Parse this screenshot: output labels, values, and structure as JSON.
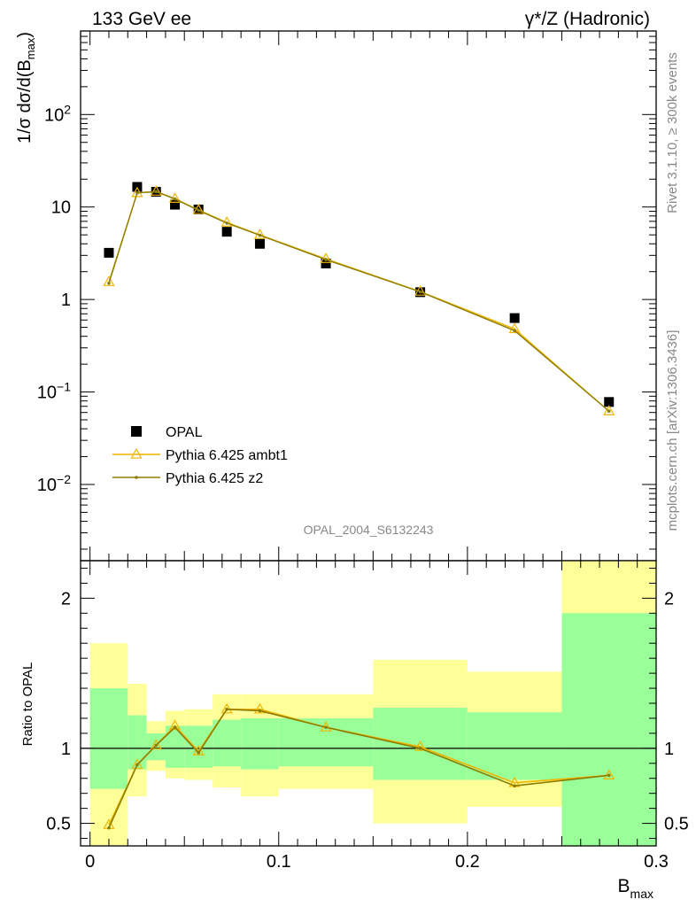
{
  "header": {
    "left_title": "133 GeV ee",
    "right_title": "γ*/Z (Hadronic)"
  },
  "side_labels": {
    "rivet": "Rivet 3.1.10, ≥ 300k events",
    "mcplots": "mcplots.cern.ch [arXiv:1306.3436]"
  },
  "watermark": "OPAL_2004_S6132243",
  "colors": {
    "data": "#000000",
    "ambt1": "#f0b400",
    "z2": "#8b7d00",
    "band_inner": "#99ff99",
    "band_outer": "#ffff99"
  },
  "chart_data": [
    {
      "type": "scatter",
      "yscale": "log",
      "ylabel": "1/σ dσ/d(B",
      "ylabel_sub": "max",
      "ylabel_close": ")",
      "xlim": [
        -0.005,
        0.3
      ],
      "ylim": [
        0.0015,
        800
      ],
      "yticks": [
        {
          "value": 0.01,
          "base": "10",
          "exp": "−2"
        },
        {
          "value": 0.1,
          "base": "10",
          "exp": "−1"
        },
        {
          "value": 1,
          "base": "1",
          "exp": ""
        },
        {
          "value": 10,
          "base": "10",
          "exp": ""
        },
        {
          "value": 100,
          "base": "10",
          "exp": "2"
        }
      ],
      "legend_position": "bottom-left",
      "series": [
        {
          "name": "OPAL",
          "style": "data",
          "x": [
            0.01,
            0.025,
            0.035,
            0.045,
            0.0575,
            0.0725,
            0.09,
            0.125,
            0.175,
            0.225,
            0.275
          ],
          "y": [
            3.2,
            16.5,
            14.6,
            10.6,
            9.4,
            5.4,
            4.0,
            2.45,
            1.2,
            0.63,
            0.078
          ]
        },
        {
          "name": "Pythia 6.425 ambt1",
          "style": "ambt1",
          "x": [
            0.01,
            0.025,
            0.035,
            0.045,
            0.0575,
            0.0725,
            0.09,
            0.125,
            0.175,
            0.225,
            0.275
          ],
          "y": [
            1.55,
            14.2,
            14.7,
            12.3,
            9.3,
            6.8,
            5.0,
            2.75,
            1.22,
            0.48,
            0.062
          ]
        },
        {
          "name": "Pythia 6.425 z2",
          "style": "z2",
          "x": [
            0.01,
            0.025,
            0.035,
            0.045,
            0.0575,
            0.0725,
            0.09,
            0.125,
            0.175,
            0.225,
            0.275
          ],
          "y": [
            1.5,
            14.2,
            14.7,
            12.2,
            9.2,
            6.7,
            4.95,
            2.7,
            1.21,
            0.46,
            0.062
          ]
        }
      ]
    },
    {
      "type": "line",
      "xlabel": "B",
      "xlabel_sub": "max",
      "ylabel": "Ratio to OPAL",
      "xlim": [
        -0.005,
        0.3
      ],
      "ylim": [
        0.35,
        2.25
      ],
      "xticks": [
        0,
        0.1,
        0.2,
        0.3
      ],
      "xtick_labels": [
        "0",
        "0.1",
        "0.2",
        "0.3"
      ],
      "yticks": [
        0.5,
        1,
        2
      ],
      "ytick_labels": [
        "0.5",
        "1",
        "2"
      ],
      "bands": [
        {
          "x0": 0.0,
          "x1": 0.02,
          "inner": [
            0.73,
            1.4
          ],
          "outer": [
            0.3,
            1.7
          ]
        },
        {
          "x0": 0.02,
          "x1": 0.03,
          "inner": [
            0.86,
            1.22
          ],
          "outer": [
            0.68,
            1.43
          ]
        },
        {
          "x0": 0.03,
          "x1": 0.04,
          "inner": [
            0.92,
            1.1
          ],
          "outer": [
            0.85,
            1.18
          ]
        },
        {
          "x0": 0.04,
          "x1": 0.05,
          "inner": [
            0.87,
            1.15
          ],
          "outer": [
            0.8,
            1.25
          ]
        },
        {
          "x0": 0.05,
          "x1": 0.065,
          "inner": [
            0.87,
            1.15
          ],
          "outer": [
            0.79,
            1.26
          ]
        },
        {
          "x0": 0.065,
          "x1": 0.08,
          "inner": [
            0.88,
            1.19
          ],
          "outer": [
            0.74,
            1.36
          ]
        },
        {
          "x0": 0.08,
          "x1": 0.1,
          "inner": [
            0.86,
            1.2
          ],
          "outer": [
            0.68,
            1.36
          ]
        },
        {
          "x0": 0.1,
          "x1": 0.15,
          "inner": [
            0.88,
            1.2
          ],
          "outer": [
            0.73,
            1.36
          ]
        },
        {
          "x0": 0.15,
          "x1": 0.2,
          "inner": [
            0.79,
            1.27
          ],
          "outer": [
            0.5,
            1.59
          ]
        },
        {
          "x0": 0.2,
          "x1": 0.25,
          "inner": [
            0.79,
            1.24
          ],
          "outer": [
            0.61,
            1.51
          ]
        },
        {
          "x0": 0.25,
          "x1": 0.3,
          "inner": [
            0.3,
            1.9
          ],
          "outer": [
            0.3,
            2.4
          ]
        }
      ],
      "series": [
        {
          "name": "Pythia 6.425 ambt1",
          "style": "ambt1",
          "x": [
            0.01,
            0.025,
            0.035,
            0.045,
            0.0575,
            0.0725,
            0.09,
            0.125,
            0.175,
            0.225,
            0.275
          ],
          "y": [
            0.49,
            0.89,
            1.02,
            1.15,
            0.98,
            1.26,
            1.26,
            1.14,
            1.01,
            0.77,
            0.82
          ]
        },
        {
          "name": "Pythia 6.425 z2",
          "style": "z2",
          "x": [
            0.01,
            0.025,
            0.035,
            0.045,
            0.0575,
            0.0725,
            0.09,
            0.125,
            0.175,
            0.225,
            0.275
          ],
          "y": [
            0.47,
            0.89,
            1.02,
            1.14,
            0.97,
            1.26,
            1.25,
            1.14,
            1.0,
            0.75,
            0.82
          ]
        }
      ]
    }
  ]
}
